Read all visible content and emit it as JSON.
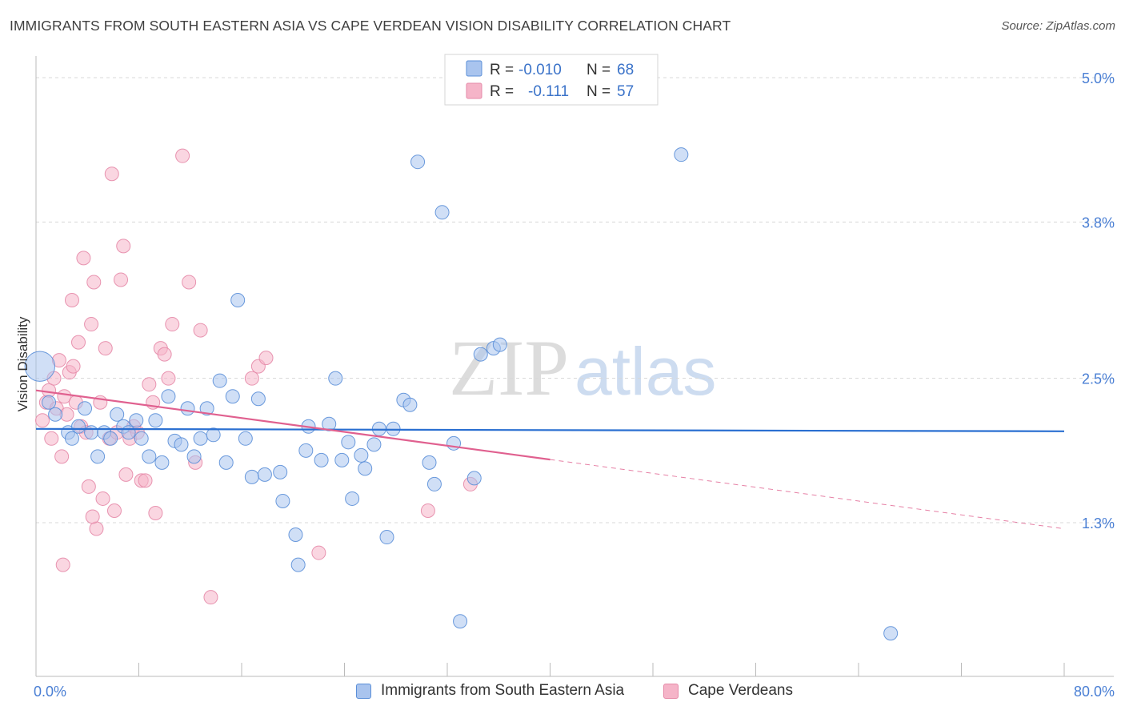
{
  "header": {
    "title": "IMMIGRANTS FROM SOUTH EASTERN ASIA VS CAPE VERDEAN VISION DISABILITY CORRELATION CHART",
    "source": "Source: ZipAtlas.com"
  },
  "watermark": {
    "zip": "ZIP",
    "atlas": "atlas"
  },
  "colors": {
    "blue_fill": "#a9c4ee",
    "blue_stroke": "#5b8fd8",
    "blue_line": "#2a6fd1",
    "pink_fill": "#f5b4c8",
    "pink_stroke": "#e58aa8",
    "pink_line": "#e0608f",
    "value_text": "#3b73c9",
    "grid": "#d8d8d8"
  },
  "legend": {
    "rows": [
      {
        "r_label": "R =",
        "r_value": "-0.010",
        "n_label": "N =",
        "n_value": "68"
      },
      {
        "r_label": "R =",
        "r_value": "-0.111",
        "n_label": "N =",
        "n_value": "57"
      }
    ]
  },
  "bottom_legend": {
    "items": [
      {
        "label": "Immigrants from South Eastern Asia"
      },
      {
        "label": "Cape Verdeans"
      }
    ]
  },
  "chart_data": {
    "type": "scatter",
    "title": "IMMIGRANTS FROM SOUTH EASTERN ASIA VS CAPE VERDEAN VISION DISABILITY CORRELATION CHART",
    "xlabel": "",
    "ylabel": "Vision Disability",
    "xlim": [
      0,
      80
    ],
    "ylim": [
      0.0,
      5.2
    ],
    "x_tick_labels": [
      {
        "value": 0,
        "label": "0.0%"
      },
      {
        "value": 80,
        "label": "80.0%"
      }
    ],
    "y_tick_labels": [
      {
        "value": 5.0,
        "label": "5.0%"
      },
      {
        "value": 3.8,
        "label": "3.8%"
      },
      {
        "value": 2.5,
        "label": "2.5%"
      },
      {
        "value": 1.3,
        "label": "1.3%"
      }
    ],
    "y_gridlines": [
      5.0,
      3.8,
      2.5,
      1.3
    ],
    "x_minor_ticks": [
      8,
      16,
      24,
      32,
      40,
      48,
      56,
      64,
      72,
      80
    ],
    "series": [
      {
        "name": "Immigrants from South Eastern Asia",
        "color": "#a9c4ee",
        "r": "-0.010",
        "n": 68,
        "trend": {
          "x0": 0,
          "y0": 2.08,
          "x1": 80,
          "y1": 2.06,
          "dashed_from": null
        },
        "points": [
          {
            "x": 0.3,
            "y": 2.6,
            "s": 2.2
          },
          {
            "x": 1.0,
            "y": 2.3
          },
          {
            "x": 1.5,
            "y": 2.2
          },
          {
            "x": 2.5,
            "y": 2.05
          },
          {
            "x": 3.3,
            "y": 2.1
          },
          {
            "x": 2.8,
            "y": 2.0
          },
          {
            "x": 3.8,
            "y": 2.25
          },
          {
            "x": 4.3,
            "y": 2.05
          },
          {
            "x": 4.8,
            "y": 1.85
          },
          {
            "x": 5.3,
            "y": 2.05
          },
          {
            "x": 5.8,
            "y": 2.0
          },
          {
            "x": 6.3,
            "y": 2.2
          },
          {
            "x": 6.8,
            "y": 2.1
          },
          {
            "x": 7.2,
            "y": 2.05
          },
          {
            "x": 7.8,
            "y": 2.15
          },
          {
            "x": 8.2,
            "y": 2.0
          },
          {
            "x": 8.8,
            "y": 1.85
          },
          {
            "x": 9.3,
            "y": 2.15
          },
          {
            "x": 9.8,
            "y": 1.8
          },
          {
            "x": 10.3,
            "y": 2.35
          },
          {
            "x": 10.8,
            "y": 1.98
          },
          {
            "x": 11.3,
            "y": 1.95
          },
          {
            "x": 11.8,
            "y": 2.25
          },
          {
            "x": 12.3,
            "y": 1.85
          },
          {
            "x": 12.8,
            "y": 2.0
          },
          {
            "x": 13.3,
            "y": 2.25
          },
          {
            "x": 13.8,
            "y": 2.03
          },
          {
            "x": 14.3,
            "y": 2.48
          },
          {
            "x": 14.8,
            "y": 1.8
          },
          {
            "x": 15.3,
            "y": 2.35
          },
          {
            "x": 15.7,
            "y": 3.15
          },
          {
            "x": 16.3,
            "y": 2.0
          },
          {
            "x": 16.8,
            "y": 1.68
          },
          {
            "x": 17.3,
            "y": 2.33
          },
          {
            "x": 17.8,
            "y": 1.7
          },
          {
            "x": 19.0,
            "y": 1.72
          },
          {
            "x": 19.2,
            "y": 1.48
          },
          {
            "x": 20.2,
            "y": 1.2
          },
          {
            "x": 20.4,
            "y": 0.95
          },
          {
            "x": 21.0,
            "y": 1.9
          },
          {
            "x": 21.2,
            "y": 2.1
          },
          {
            "x": 22.2,
            "y": 1.82
          },
          {
            "x": 22.8,
            "y": 2.12
          },
          {
            "x": 23.3,
            "y": 2.5
          },
          {
            "x": 23.8,
            "y": 1.82
          },
          {
            "x": 24.3,
            "y": 1.97
          },
          {
            "x": 24.6,
            "y": 1.5
          },
          {
            "x": 25.3,
            "y": 1.86
          },
          {
            "x": 25.6,
            "y": 1.75
          },
          {
            "x": 26.3,
            "y": 1.95
          },
          {
            "x": 26.7,
            "y": 2.08
          },
          {
            "x": 27.3,
            "y": 1.18
          },
          {
            "x": 27.8,
            "y": 2.08
          },
          {
            "x": 28.6,
            "y": 2.32
          },
          {
            "x": 29.1,
            "y": 2.28
          },
          {
            "x": 29.7,
            "y": 4.3
          },
          {
            "x": 31.0,
            "y": 1.62
          },
          {
            "x": 30.6,
            "y": 1.8
          },
          {
            "x": 31.6,
            "y": 3.88
          },
          {
            "x": 32.5,
            "y": 1.96
          },
          {
            "x": 33.0,
            "y": 0.48
          },
          {
            "x": 34.1,
            "y": 1.67
          },
          {
            "x": 34.6,
            "y": 2.7
          },
          {
            "x": 35.6,
            "y": 2.75
          },
          {
            "x": 36.1,
            "y": 2.78
          },
          {
            "x": 50.2,
            "y": 4.36
          },
          {
            "x": 66.5,
            "y": 0.38
          }
        ]
      },
      {
        "name": "Cape Verdeans",
        "color": "#f5b4c8",
        "r": "-0.111",
        "n": 57,
        "trend": {
          "x0": 0,
          "y0": 2.4,
          "x1": 80,
          "y1": 1.25,
          "dashed_from": 40
        },
        "points": [
          {
            "x": 0.5,
            "y": 2.15
          },
          {
            "x": 0.8,
            "y": 2.3
          },
          {
            "x": 1.0,
            "y": 2.4
          },
          {
            "x": 1.2,
            "y": 2.0
          },
          {
            "x": 1.4,
            "y": 2.5
          },
          {
            "x": 1.6,
            "y": 2.25
          },
          {
            "x": 1.8,
            "y": 2.65
          },
          {
            "x": 2.0,
            "y": 1.85
          },
          {
            "x": 2.2,
            "y": 2.35
          },
          {
            "x": 2.4,
            "y": 2.2
          },
          {
            "x": 2.6,
            "y": 2.55
          },
          {
            "x": 2.8,
            "y": 3.15
          },
          {
            "x": 2.9,
            "y": 2.6
          },
          {
            "x": 3.1,
            "y": 2.3
          },
          {
            "x": 3.3,
            "y": 2.8
          },
          {
            "x": 3.5,
            "y": 2.1
          },
          {
            "x": 3.7,
            "y": 3.5
          },
          {
            "x": 3.9,
            "y": 2.05
          },
          {
            "x": 4.1,
            "y": 1.6
          },
          {
            "x": 4.3,
            "y": 2.95
          },
          {
            "x": 4.5,
            "y": 3.3
          },
          {
            "x": 4.7,
            "y": 1.25
          },
          {
            "x": 5.0,
            "y": 2.3
          },
          {
            "x": 5.2,
            "y": 1.5
          },
          {
            "x": 5.4,
            "y": 2.75
          },
          {
            "x": 5.7,
            "y": 2.0
          },
          {
            "x": 5.9,
            "y": 4.2
          },
          {
            "x": 6.1,
            "y": 1.4
          },
          {
            "x": 6.3,
            "y": 2.05
          },
          {
            "x": 6.6,
            "y": 3.32
          },
          {
            "x": 6.8,
            "y": 3.6
          },
          {
            "x": 7.0,
            "y": 1.7
          },
          {
            "x": 7.3,
            "y": 2.0
          },
          {
            "x": 7.6,
            "y": 2.1
          },
          {
            "x": 7.9,
            "y": 2.05
          },
          {
            "x": 8.2,
            "y": 1.65
          },
          {
            "x": 8.5,
            "y": 1.65
          },
          {
            "x": 8.8,
            "y": 2.45
          },
          {
            "x": 9.1,
            "y": 2.3
          },
          {
            "x": 9.3,
            "y": 1.38
          },
          {
            "x": 9.7,
            "y": 2.75
          },
          {
            "x": 10.0,
            "y": 2.7
          },
          {
            "x": 10.3,
            "y": 2.5
          },
          {
            "x": 10.6,
            "y": 2.95
          },
          {
            "x": 11.4,
            "y": 4.35
          },
          {
            "x": 11.9,
            "y": 3.3
          },
          {
            "x": 12.4,
            "y": 1.8
          },
          {
            "x": 12.8,
            "y": 2.9
          },
          {
            "x": 13.6,
            "y": 0.68
          },
          {
            "x": 16.8,
            "y": 2.5
          },
          {
            "x": 17.3,
            "y": 2.6
          },
          {
            "x": 17.9,
            "y": 2.67
          },
          {
            "x": 22.0,
            "y": 1.05
          },
          {
            "x": 30.5,
            "y": 1.4
          },
          {
            "x": 33.8,
            "y": 1.62
          },
          {
            "x": 2.1,
            "y": 0.95
          },
          {
            "x": 4.4,
            "y": 1.35
          }
        ]
      }
    ]
  }
}
